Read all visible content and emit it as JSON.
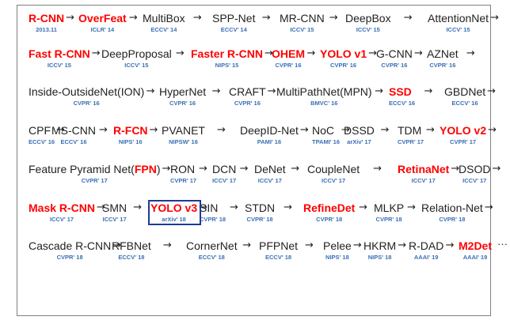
{
  "arrow_symbol": "→",
  "ellipsis": "···",
  "colors": {
    "highlight_text": "#ff0000",
    "normal_text": "#222222",
    "venue_text": "#3a6fb5",
    "highlight_box": "#1f3a93"
  },
  "highlighted_node": "YOLO v3",
  "rows": [
    {
      "items": [
        {
          "name": "R-CNN",
          "venue": "2013.11",
          "highlight": true
        },
        {
          "name": "OverFeat",
          "venue": "ICLR' 14",
          "highlight": true
        },
        {
          "name": "MultiBox",
          "venue": "ECCV' 14",
          "highlight": false
        },
        {
          "name": "SPP-Net",
          "venue": "ECCV' 14",
          "highlight": false
        },
        {
          "name": "MR-CNN",
          "venue": "ICCV' 15",
          "highlight": false
        },
        {
          "name": "DeepBox",
          "venue": "ICCV' 15",
          "highlight": false
        },
        {
          "name": "AttentionNet",
          "venue": "ICCV' 15",
          "highlight": false
        }
      ],
      "trailing_arrow": true
    },
    {
      "items": [
        {
          "name": "Fast R-CNN",
          "venue": "ICCV' 15",
          "highlight": true
        },
        {
          "name": "DeepProposal",
          "venue": "ICCV' 15",
          "highlight": false
        },
        {
          "name": "Faster R-CNN",
          "venue": "NIPS' 15",
          "highlight": true
        },
        {
          "name": "OHEM",
          "venue": "CVPR' 16",
          "highlight": true
        },
        {
          "name": "YOLO v1",
          "venue": "CVPR' 16",
          "highlight": true
        },
        {
          "name": "G-CNN",
          "venue": "CVPR' 16",
          "highlight": false
        },
        {
          "name": "AZNet",
          "venue": "CVPR' 16",
          "highlight": false
        }
      ],
      "trailing_arrow": true
    },
    {
      "items": [
        {
          "name": "Inside-OutsideNet(ION)",
          "venue": "CVPR' 16",
          "highlight": false
        },
        {
          "name": "HyperNet",
          "venue": "CVPR' 16",
          "highlight": false
        },
        {
          "name": "CRAFT",
          "venue": "CVPR' 16",
          "highlight": false
        },
        {
          "name": "MultiPathNet(MPN)",
          "venue": "BMVC' 16",
          "highlight": false
        },
        {
          "name": "SSD",
          "venue": "ECCV' 16",
          "highlight": true
        },
        {
          "name": "GBDNet",
          "venue": "ECCV' 16",
          "highlight": false
        }
      ],
      "trailing_arrow": true
    },
    {
      "items": [
        {
          "name": "CPF",
          "venue": "ECCV' 16",
          "highlight": false
        },
        {
          "name": "MS-CNN",
          "venue": "ECCV' 16",
          "highlight": false
        },
        {
          "name": "R-FCN",
          "venue": "NIPS' 16",
          "highlight": true
        },
        {
          "name": "PVANET",
          "venue": "NIPSW' 16",
          "highlight": false
        },
        {
          "name": "DeepID-Net",
          "venue": "PAMI' 16",
          "highlight": false
        },
        {
          "name": "NoC",
          "venue": "TPAMI' 16",
          "highlight": false
        },
        {
          "name": "DSSD",
          "venue": "arXiv' 17",
          "highlight": false
        },
        {
          "name": "TDM",
          "venue": "CVPR' 17",
          "highlight": false
        },
        {
          "name": "YOLO v2",
          "venue": "CVPR' 17",
          "highlight": true
        }
      ],
      "trailing_arrow": true
    },
    {
      "items": [
        {
          "name": "Feature Pyramid Net(",
          "name_suffix": "FPN",
          "name_end": ")",
          "venue": "CVPR' 17",
          "highlight": false
        },
        {
          "name": "RON",
          "venue": "CVPR' 17",
          "highlight": false
        },
        {
          "name": "DCN",
          "venue": "ICCV' 17",
          "highlight": false
        },
        {
          "name": "DeNet",
          "venue": "ICCV' 17",
          "highlight": false
        },
        {
          "name": "CoupleNet",
          "venue": "ICCV' 17",
          "highlight": false
        },
        {
          "name": "RetinaNet",
          "venue": "ICCV' 17",
          "highlight": true
        },
        {
          "name": "DSOD",
          "venue": "ICCV' 17",
          "highlight": false
        }
      ],
      "trailing_arrow": true
    },
    {
      "items": [
        {
          "name": "Mask R-CNN",
          "venue": "ICCV' 17",
          "highlight": true
        },
        {
          "name": "SMN",
          "venue": "ICCV' 17",
          "highlight": false
        },
        {
          "name": "YOLO v3",
          "venue": "arXiv' 18",
          "highlight": true,
          "boxed": true
        },
        {
          "name": "SIN",
          "venue": "CVPR' 18",
          "highlight": false
        },
        {
          "name": "STDN",
          "venue": "CVPR' 18",
          "highlight": false
        },
        {
          "name": "RefineDet",
          "venue": "CVPR' 18",
          "highlight": true
        },
        {
          "name": "MLKP",
          "venue": "CVPR' 18",
          "highlight": false
        },
        {
          "name": "Relation-Net",
          "venue": "CVPR' 18",
          "highlight": false
        }
      ],
      "trailing_arrow": true
    },
    {
      "items": [
        {
          "name": "Cascade R-CNN",
          "venue": "CVPR' 18",
          "highlight": false
        },
        {
          "name": "RFBNet",
          "venue": "ECCV' 18",
          "highlight": false
        },
        {
          "name": "CornerNet",
          "venue": "ECCV' 18",
          "highlight": false
        },
        {
          "name": "PFPNet",
          "venue": "ECCV' 18",
          "highlight": false
        },
        {
          "name": "Pelee",
          "venue": "NIPS' 18",
          "highlight": false
        },
        {
          "name": "HKRM",
          "venue": "NIPS' 18",
          "highlight": false
        },
        {
          "name": "R-DAD",
          "venue": "AAAI' 19",
          "highlight": false
        },
        {
          "name": "M2Det",
          "venue": "AAAI' 19",
          "highlight": true
        }
      ],
      "trailing_arrow": false,
      "trailing_ellipsis": true
    }
  ]
}
